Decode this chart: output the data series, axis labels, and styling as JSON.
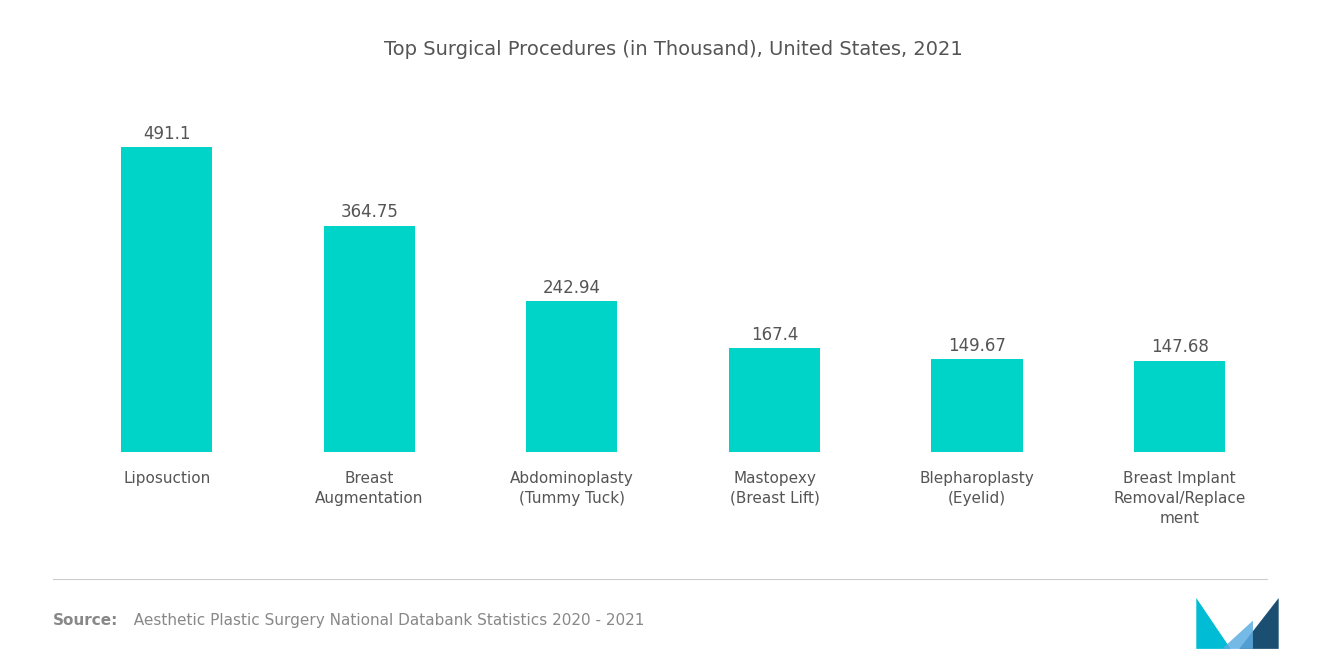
{
  "title": "Top Surgical Procedures (in Thousand), United States, 2021",
  "categories": [
    "Liposuction",
    "Breast\nAugmentation",
    "Abdominoplasty\n(Tummy Tuck)",
    "Mastopexy\n(Breast Lift)",
    "Blepharoplasty\n(Eyelid)",
    "Breast Implant\nRemoval/Replace\nment"
  ],
  "values": [
    491.1,
    364.75,
    242.94,
    167.4,
    149.67,
    147.68
  ],
  "bar_color": "#00D4C8",
  "value_labels": [
    "491.1",
    "364.75",
    "242.94",
    "167.4",
    "149.67",
    "147.68"
  ],
  "source_bold": "Source:",
  "source_text": "  Aesthetic Plastic Surgery National Databank Statistics 2020 - 2021",
  "background_color": "#ffffff",
  "title_fontsize": 14,
  "label_fontsize": 11,
  "value_fontsize": 12,
  "source_fontsize": 11,
  "ylim": [
    0,
    600
  ],
  "bar_width": 0.45
}
